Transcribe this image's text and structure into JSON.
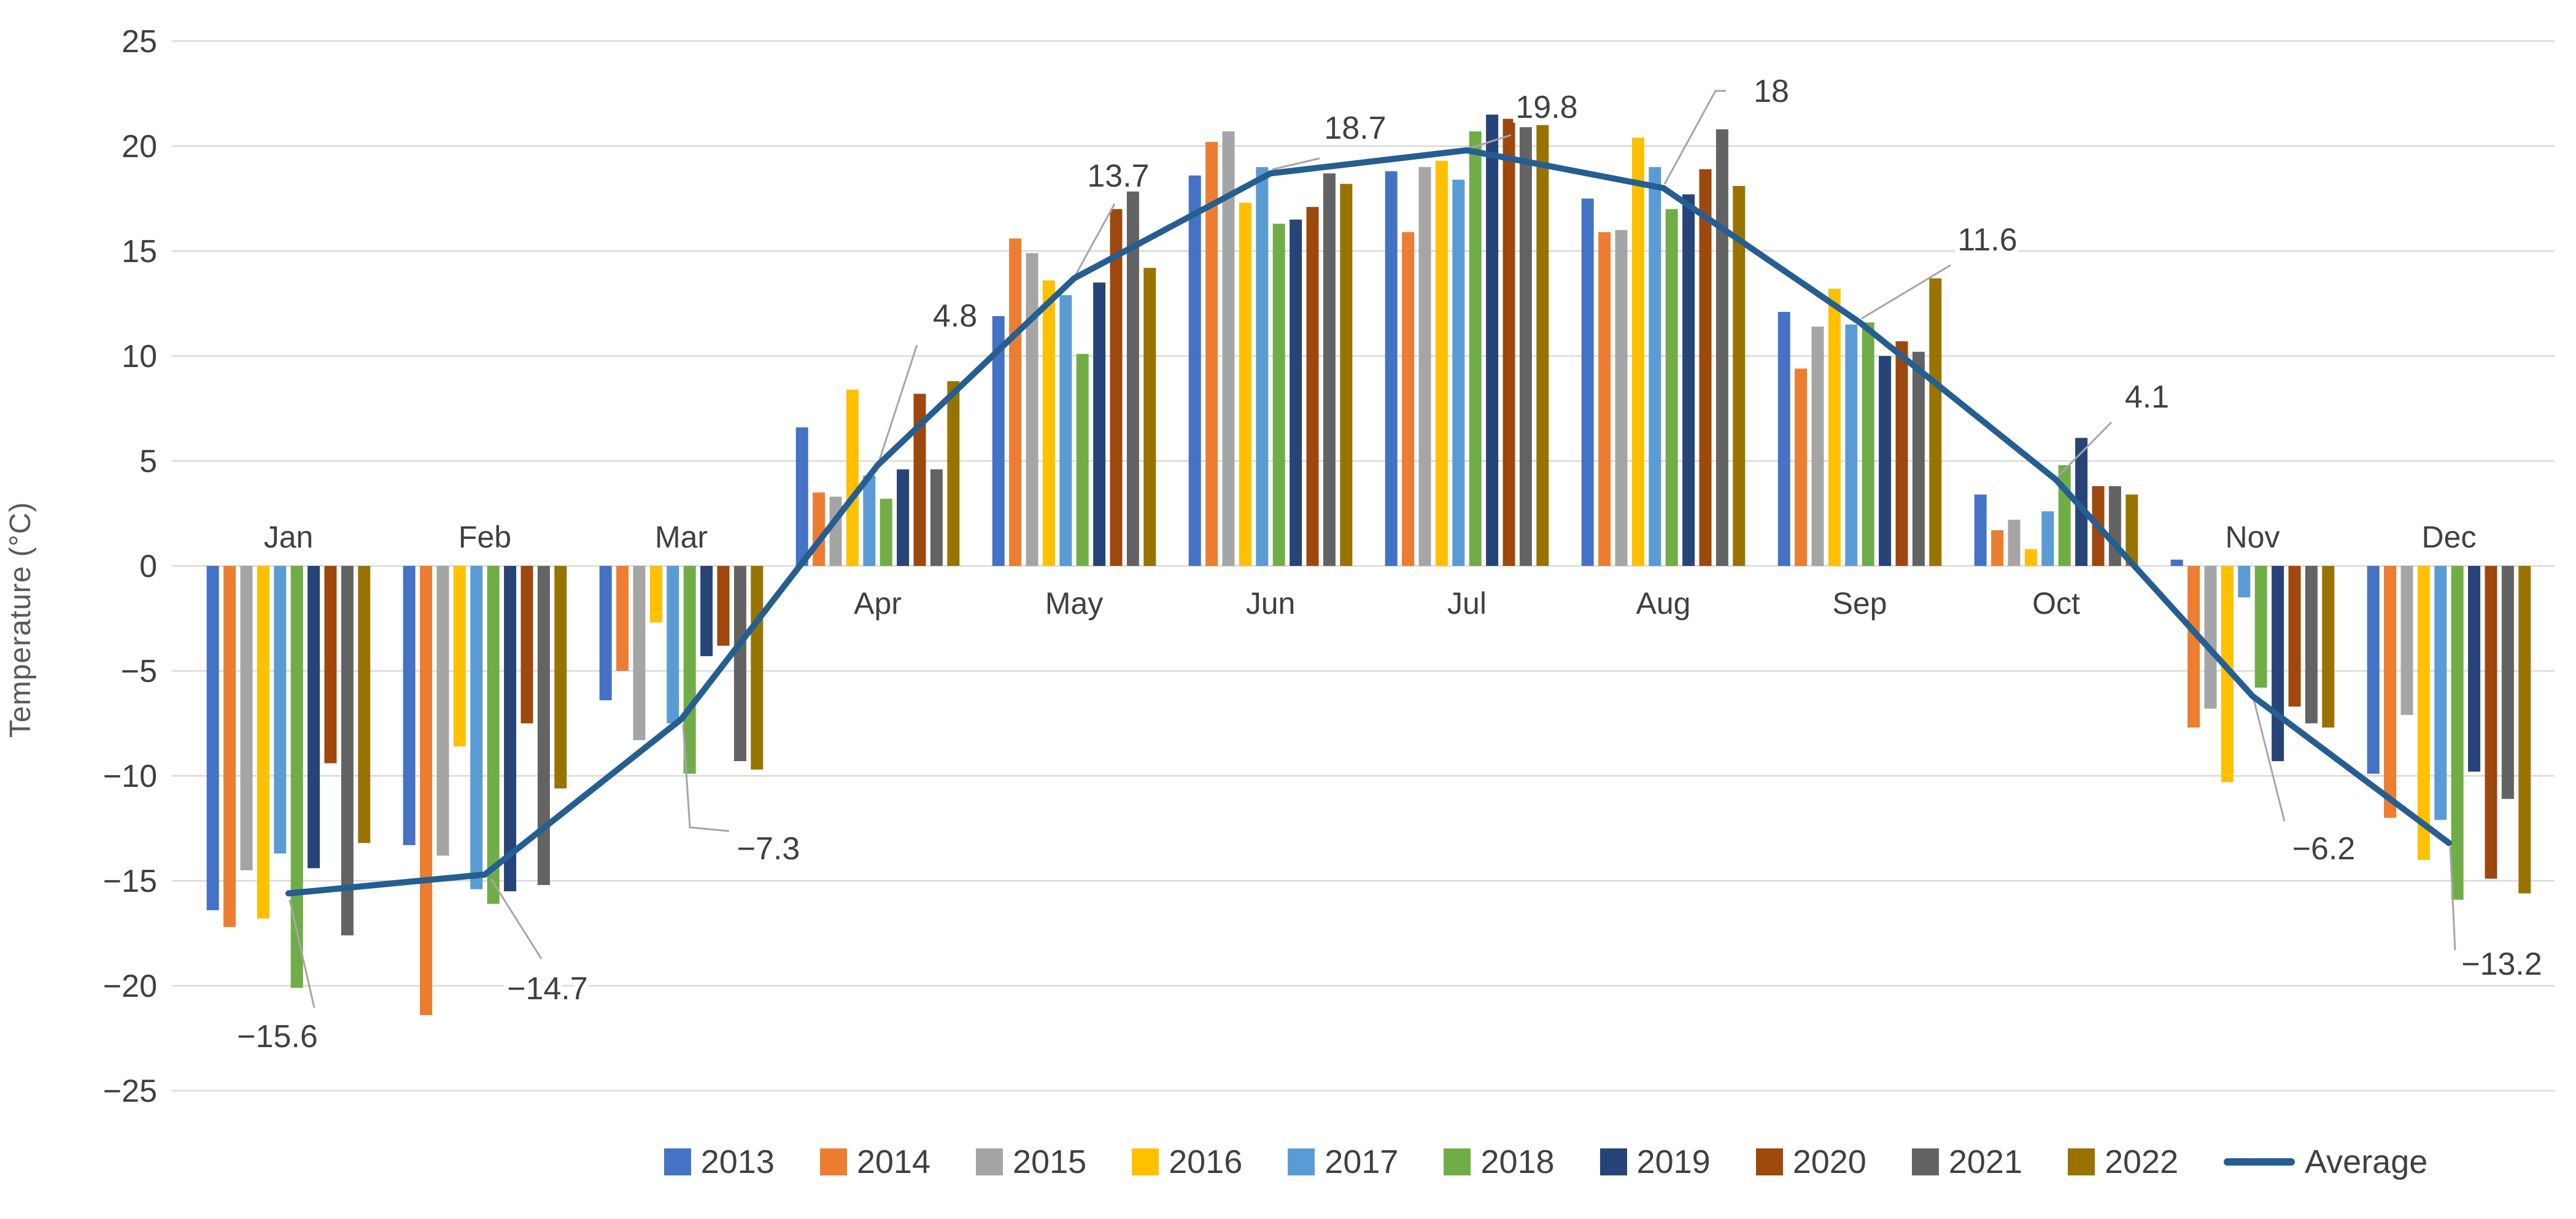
{
  "chart_data": {
    "type": "bar+line",
    "title": "",
    "ylabel": "Temperature (°C)",
    "ylim": [
      -25,
      25
    ],
    "ytick_step": 5,
    "grid": true,
    "legend_position": "bottom",
    "categories": [
      "Jan",
      "Feb",
      "Mar",
      "Apr",
      "May",
      "Jun",
      "Jul",
      "Aug",
      "Sep",
      "Oct",
      "Nov",
      "Dec"
    ],
    "yticks": [
      "25",
      "20",
      "15",
      "10",
      "5",
      "0",
      "−5",
      "−10",
      "−15",
      "−20",
      "−25"
    ],
    "series": [
      {
        "name": "2013",
        "color": "#4472C4",
        "values": [
          -16.4,
          -13.3,
          -6.4,
          6.6,
          11.9,
          18.6,
          18.8,
          17.5,
          12.1,
          3.4,
          0.3,
          -9.9
        ]
      },
      {
        "name": "2014",
        "color": "#ED7D31",
        "values": [
          -17.2,
          -21.4,
          -5.0,
          3.5,
          15.6,
          20.2,
          15.9,
          15.9,
          9.4,
          1.7,
          -7.7,
          -12.0
        ]
      },
      {
        "name": "2015",
        "color": "#A5A5A5",
        "values": [
          -14.5,
          -13.8,
          -8.3,
          3.3,
          14.9,
          20.7,
          19.0,
          16.0,
          11.4,
          2.2,
          -6.8,
          -7.1
        ]
      },
      {
        "name": "2016",
        "color": "#FFC000",
        "values": [
          -16.8,
          -8.6,
          -2.7,
          8.4,
          13.6,
          17.3,
          19.3,
          20.4,
          13.2,
          0.8,
          -10.3,
          -14.0
        ]
      },
      {
        "name": "2017",
        "color": "#5B9BD5",
        "values": [
          -13.7,
          -15.4,
          -7.5,
          4.3,
          12.9,
          19.0,
          18.4,
          19.0,
          11.5,
          2.6,
          -1.5,
          -12.1
        ]
      },
      {
        "name": "2018",
        "color": "#70AD47",
        "values": [
          -20.1,
          -16.1,
          -9.9,
          3.2,
          10.1,
          16.3,
          20.7,
          17.0,
          11.6,
          4.8,
          -5.8,
          -15.9
        ]
      },
      {
        "name": "2019",
        "color": "#264478",
        "values": [
          -14.4,
          -15.5,
          -4.3,
          4.6,
          13.5,
          16.5,
          21.5,
          17.7,
          10.0,
          6.1,
          -9.3,
          -9.8
        ]
      },
      {
        "name": "2020",
        "color": "#9E480E",
        "values": [
          -9.4,
          -7.5,
          -3.8,
          8.2,
          17.0,
          17.1,
          21.3,
          18.9,
          10.7,
          3.8,
          -6.7,
          -14.9
        ]
      },
      {
        "name": "2021",
        "color": "#636363",
        "values": [
          -17.6,
          -15.2,
          -9.3,
          4.6,
          18.1,
          18.7,
          20.9,
          20.8,
          10.2,
          3.8,
          -7.5,
          -11.1
        ]
      },
      {
        "name": "2022",
        "color": "#997300",
        "values": [
          -13.2,
          -10.6,
          -9.7,
          8.8,
          14.2,
          18.2,
          21.0,
          18.1,
          13.7,
          3.4,
          -7.7,
          -15.6
        ]
      }
    ],
    "average": {
      "name": "Average",
      "color": "#255E91",
      "values": [
        -15.6,
        -14.7,
        -7.3,
        4.8,
        13.7,
        18.7,
        19.8,
        18,
        11.6,
        4.1,
        -6.2,
        -13.2
      ],
      "labels": [
        "−15.6",
        "−14.7",
        "−7.3",
        "4.8",
        "13.7",
        "18.7",
        "19.8",
        "18",
        "11.6",
        "4.1",
        "−6.2",
        "−13.2"
      ]
    }
  }
}
